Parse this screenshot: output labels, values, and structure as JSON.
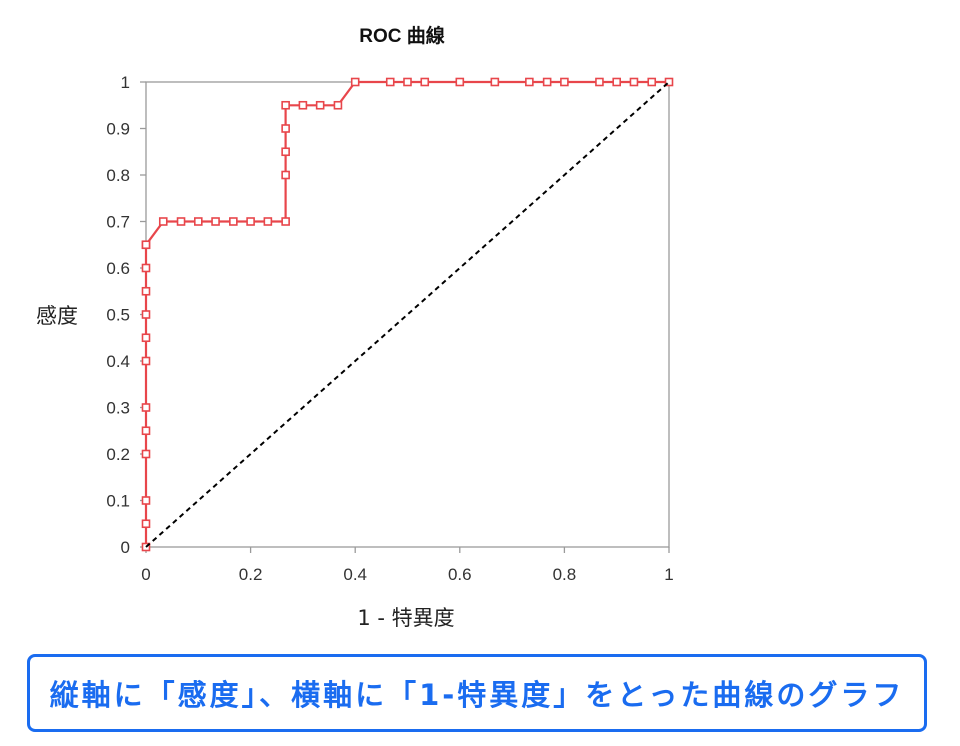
{
  "chart_data": {
    "type": "line",
    "title": "ROC 曲線",
    "xlabel": "1 - 特異度",
    "ylabel": "感度",
    "xlim": [
      0,
      1
    ],
    "ylim": [
      0,
      1
    ],
    "xticks": [
      "0",
      "0.2",
      "0.4",
      "0.6",
      "0.8",
      "1"
    ],
    "yticks": [
      "0",
      "0.1",
      "0.2",
      "0.3",
      "0.4",
      "0.5",
      "0.6",
      "0.7",
      "0.8",
      "0.9",
      "1"
    ],
    "grid": false,
    "series": [
      {
        "color": "#e8464b",
        "marker": "square",
        "x": [
          0,
          0,
          0,
          0,
          0,
          0,
          0,
          0,
          0,
          0,
          0,
          0,
          0,
          0.033,
          0.067,
          0.1,
          0.133,
          0.167,
          0.2,
          0.233,
          0.267,
          0.267,
          0.267,
          0.267,
          0.267,
          0.3,
          0.333,
          0.367,
          0.4,
          0.467,
          0.5,
          0.533,
          0.6,
          0.667,
          0.733,
          0.767,
          0.8,
          0.867,
          0.9,
          0.933,
          0.967,
          1.0
        ],
        "y": [
          0,
          0.05,
          0.1,
          0.2,
          0.25,
          0.3,
          0.4,
          0.45,
          0.5,
          0.55,
          0.6,
          0.65,
          0.65,
          0.7,
          0.7,
          0.7,
          0.7,
          0.7,
          0.7,
          0.7,
          0.7,
          0.8,
          0.85,
          0.9,
          0.95,
          0.95,
          0.95,
          0.95,
          1.0,
          1.0,
          1.0,
          1.0,
          1.0,
          1.0,
          1.0,
          1.0,
          1.0,
          1.0,
          1.0,
          1.0,
          1.0,
          1.0
        ]
      },
      {
        "color": "#000000",
        "style": "dashed",
        "x": [
          0,
          1
        ],
        "y": [
          0,
          1
        ]
      }
    ]
  },
  "caption": "縦軸に「感度」、横軸に「1-特異度」をとった曲線のグラフ"
}
